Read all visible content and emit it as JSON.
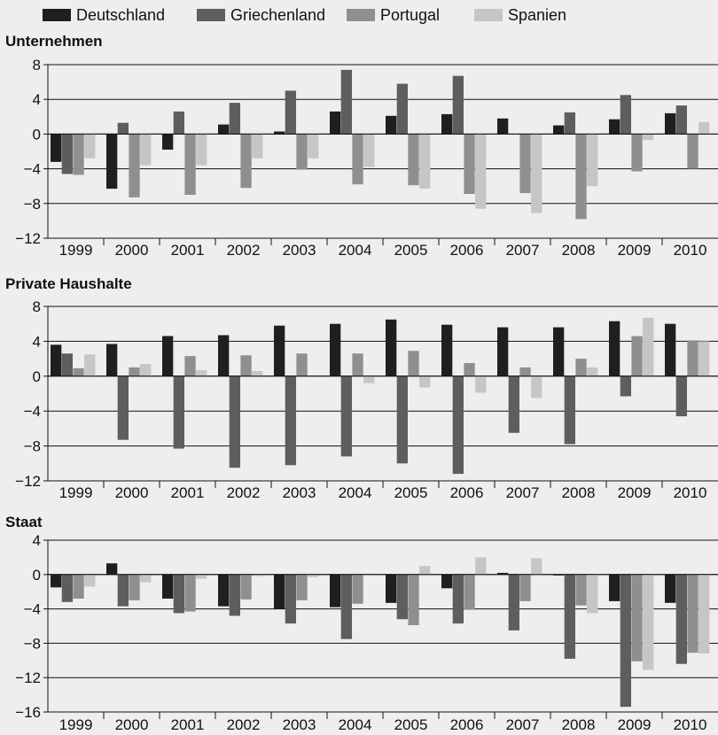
{
  "legend": [
    {
      "name": "Deutschland",
      "color": "#1f1f1f"
    },
    {
      "name": "Griechenland",
      "color": "#5e5e5e"
    },
    {
      "name": "Portugal",
      "color": "#8f8f8f"
    },
    {
      "name": "Spanien",
      "color": "#c6c6c6"
    }
  ],
  "chart_data": [
    {
      "type": "bar",
      "title": "Unternehmen",
      "categories": [
        "1999",
        "2000",
        "2001",
        "2002",
        "2003",
        "2004",
        "2005",
        "2006",
        "2007",
        "2008",
        "2009",
        "2010"
      ],
      "ylim": [
        -12,
        8
      ],
      "yticks": [
        8,
        4,
        0,
        -4,
        -8,
        -12
      ],
      "ytick_labels": [
        "8",
        "4",
        "0",
        "−4",
        "−8",
        "−12"
      ],
      "grid": true,
      "series": [
        {
          "name": "Deutschland",
          "values": [
            -3.2,
            -6.3,
            -1.8,
            1.1,
            0.3,
            2.6,
            2.1,
            2.3,
            1.8,
            1.0,
            1.7,
            2.4
          ]
        },
        {
          "name": "Griechenland",
          "values": [
            -4.6,
            1.3,
            2.6,
            3.6,
            5.0,
            7.4,
            5.8,
            6.7,
            0.0,
            2.5,
            4.5,
            3.3
          ]
        },
        {
          "name": "Portugal",
          "values": [
            -4.7,
            -7.3,
            -7.0,
            -6.2,
            -4.1,
            -5.8,
            -5.9,
            -6.9,
            -6.8,
            -9.8,
            -4.3,
            -4.0
          ]
        },
        {
          "name": "Spanien",
          "values": [
            -2.8,
            -3.6,
            -3.6,
            -2.8,
            -2.8,
            -3.8,
            -6.3,
            -8.6,
            -9.1,
            -6.0,
            -0.7,
            1.4
          ]
        }
      ]
    },
    {
      "type": "bar",
      "title": "Private Haushalte",
      "categories": [
        "1999",
        "2000",
        "2001",
        "2002",
        "2003",
        "2004",
        "2005",
        "2006",
        "2007",
        "2008",
        "2009",
        "2010"
      ],
      "ylim": [
        -12,
        8
      ],
      "yticks": [
        8,
        4,
        0,
        -4,
        -8,
        -12
      ],
      "ytick_labels": [
        "8",
        "4",
        "0",
        "−4",
        "−8",
        "−12"
      ],
      "grid": true,
      "series": [
        {
          "name": "Deutschland",
          "values": [
            3.6,
            3.7,
            4.6,
            4.7,
            5.8,
            6.0,
            6.5,
            5.9,
            5.6,
            5.6,
            6.3,
            6.0
          ]
        },
        {
          "name": "Griechenland",
          "values": [
            2.6,
            -7.3,
            -8.3,
            -10.5,
            -10.2,
            -9.2,
            -10.0,
            -11.2,
            -6.5,
            -7.8,
            -2.3,
            -4.6
          ]
        },
        {
          "name": "Portugal",
          "values": [
            0.9,
            1.0,
            2.3,
            2.4,
            2.6,
            2.6,
            2.9,
            1.5,
            1.0,
            2.0,
            4.6,
            4.1
          ]
        },
        {
          "name": "Spanien",
          "values": [
            2.5,
            1.4,
            0.7,
            0.6,
            0.0,
            -0.8,
            -1.3,
            -1.9,
            -2.5,
            1.0,
            6.7,
            4.0
          ]
        }
      ]
    },
    {
      "type": "bar",
      "title": "Staat",
      "categories": [
        "1999",
        "2000",
        "2001",
        "2002",
        "2003",
        "2004",
        "2005",
        "2006",
        "2007",
        "2008",
        "2009",
        "2010"
      ],
      "ylim": [
        -16,
        4
      ],
      "yticks": [
        4,
        0,
        -4,
        -8,
        -12,
        -16
      ],
      "ytick_labels": [
        "4",
        "0",
        "−4",
        "−8",
        "−12",
        "−16"
      ],
      "grid": true,
      "series": [
        {
          "name": "Deutschland",
          "values": [
            -1.5,
            1.3,
            -2.8,
            -3.7,
            -4.0,
            -3.8,
            -3.3,
            -1.6,
            0.2,
            -0.1,
            -3.1,
            -3.3
          ]
        },
        {
          "name": "Griechenland",
          "values": [
            -3.2,
            -3.7,
            -4.5,
            -4.8,
            -5.7,
            -7.5,
            -5.2,
            -5.7,
            -6.5,
            -9.8,
            -15.4,
            -10.4
          ]
        },
        {
          "name": "Portugal",
          "values": [
            -2.8,
            -3.0,
            -4.3,
            -2.9,
            -3.0,
            -3.4,
            -5.9,
            -4.1,
            -3.1,
            -3.6,
            -10.1,
            -9.1
          ]
        },
        {
          "name": "Spanien",
          "values": [
            -1.4,
            -0.9,
            -0.5,
            -0.2,
            -0.3,
            -0.1,
            1.0,
            2.0,
            1.9,
            -4.5,
            -11.1,
            -9.2
          ]
        }
      ]
    }
  ]
}
